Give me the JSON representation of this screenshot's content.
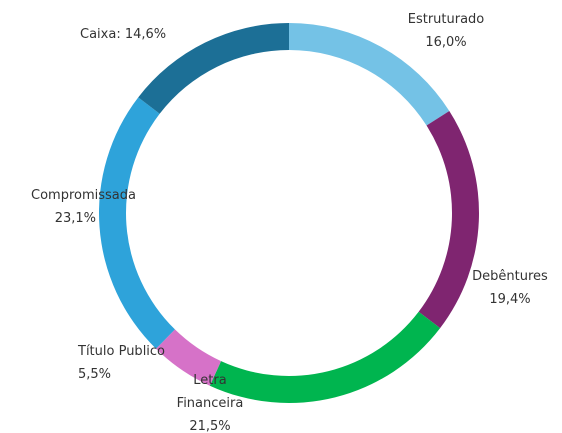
{
  "chart_data": {
    "type": "donut",
    "categories": [
      "Estruturado",
      "Debêntures",
      "Letra Financeira",
      "Título Publico",
      "Compromissada",
      "Caixa:"
    ],
    "values": [
      16.0,
      19.4,
      21.5,
      5.5,
      23.1,
      14.6
    ],
    "value_labels": [
      "16,0%",
      "19,4%",
      "21,5%",
      "5,5%",
      "23,1%",
      "14,6%"
    ],
    "colors": [
      "#74c2e6",
      "#7f2570",
      "#00b54f",
      "#d672c8",
      "#2ea3da",
      "#1c6f96"
    ]
  }
}
